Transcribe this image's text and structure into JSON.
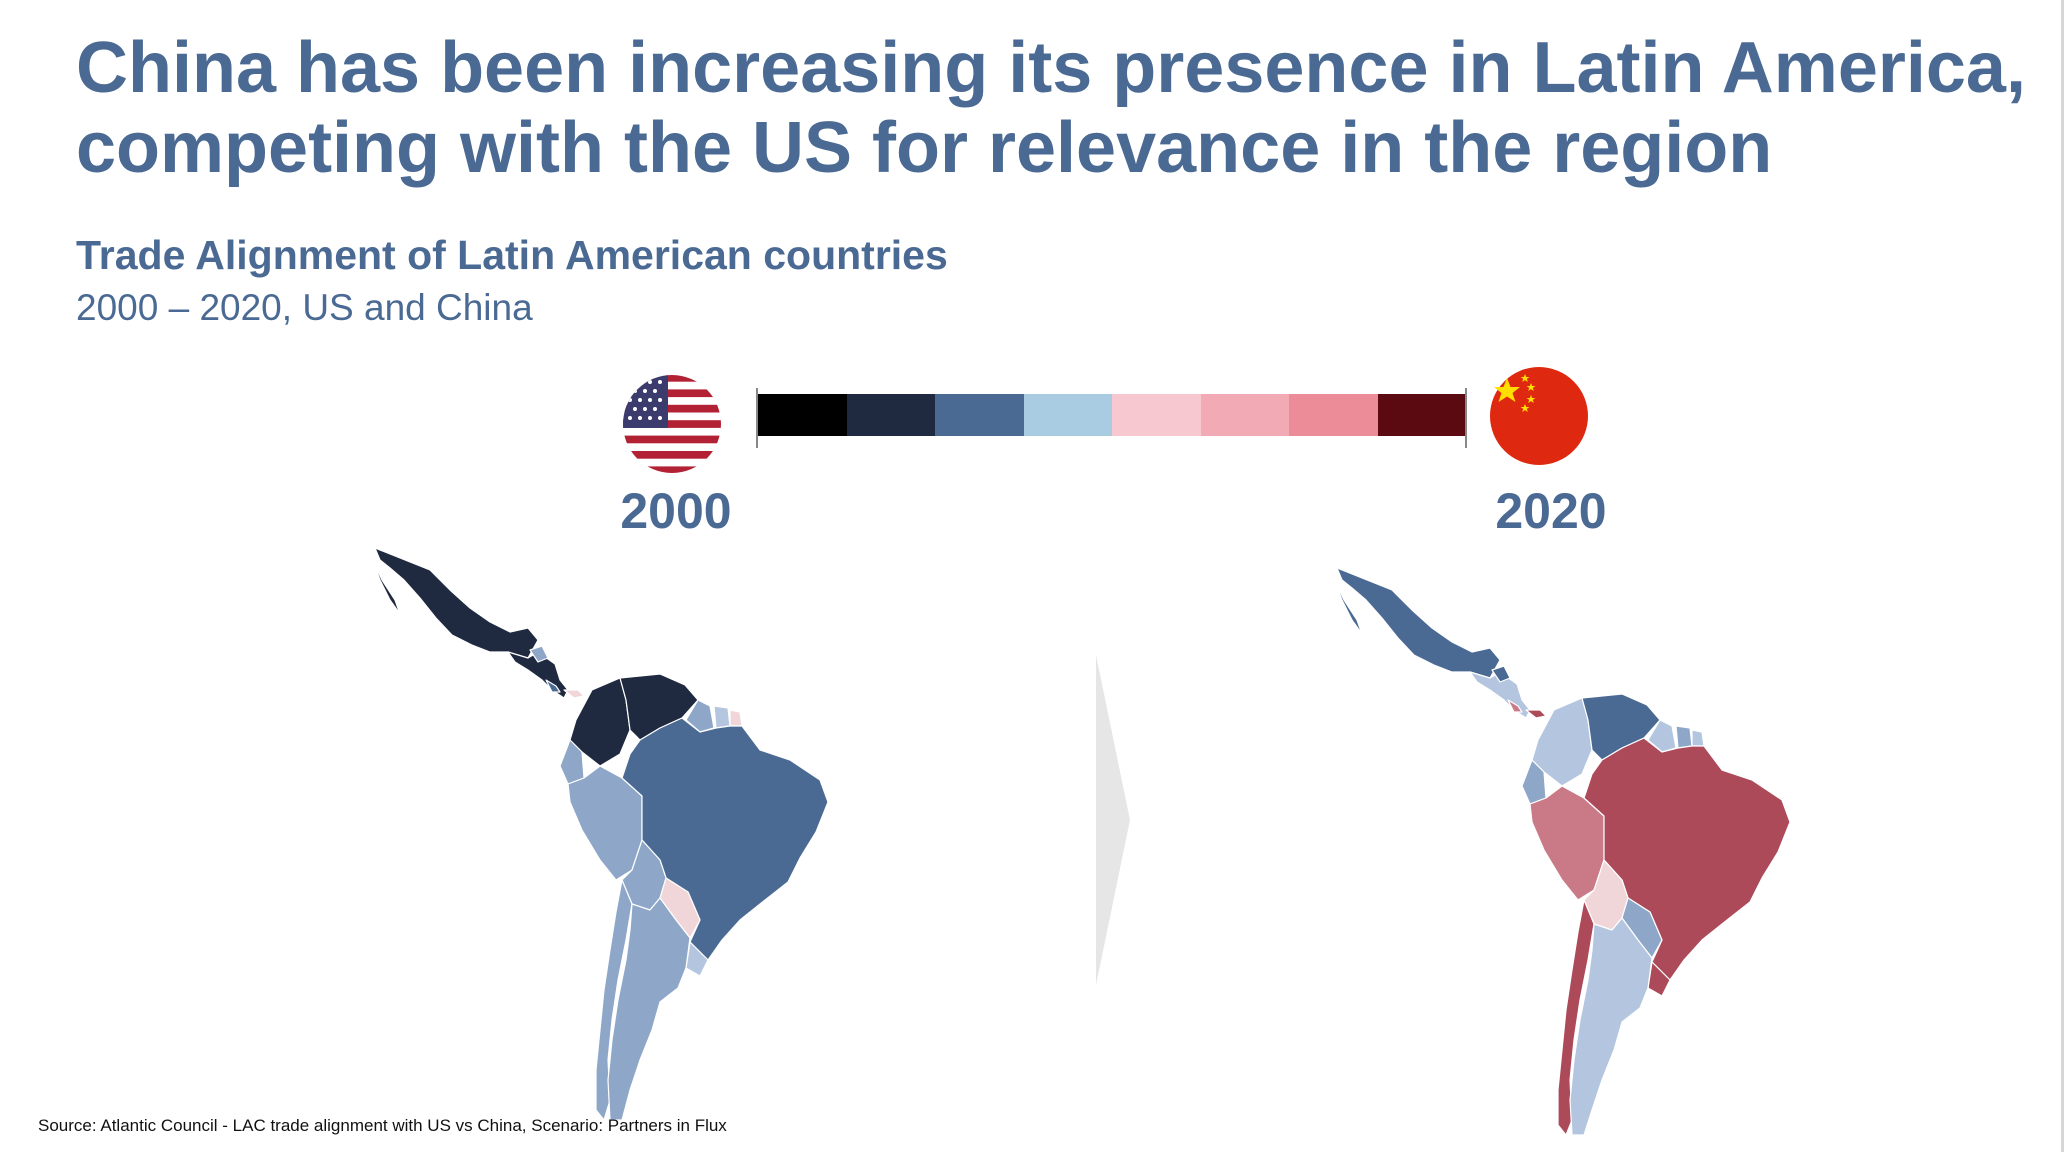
{
  "header": {
    "title_line1": "China has been increasing its presence in Latin America,",
    "title_line2": "competing with the US for relevance in the region",
    "subtitle": "Trade Alignment of Latin American countries",
    "subsubtitle": "2000 – 2020, US and China"
  },
  "legend": {
    "colors": [
      "#000000",
      "#1f2a40",
      "#4a6a94",
      "#a9cce2",
      "#f8c8d0",
      "#f2aab5",
      "#ec8c98",
      "#5c0a12"
    ],
    "left_icon": "us-flag-icon",
    "right_icon": "china-flag-icon"
  },
  "map_left": {
    "year": "2000"
  },
  "map_right": {
    "year": "2020"
  },
  "palette": {
    "us_strong": "#1f2a40",
    "us_medium": "#4a6a94",
    "us_light": "#8ea7c8",
    "us_pale": "#b4c6df",
    "china_light": "#f1d6d9",
    "china_medium": "#c97a86",
    "china_strong": "#ad4a5a"
  },
  "footer": {
    "source": "Source: Atlantic Council - LAC trade alignment with US vs China, Scenario: Partners in Flux"
  }
}
